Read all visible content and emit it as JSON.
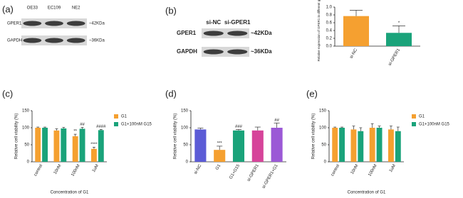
{
  "panel_labels": [
    "(a)",
    "(b)",
    "(c)",
    "(d)",
    "(e)"
  ],
  "blots": [
    {
      "lanes": [
        "OE33",
        "EC109",
        "NE2"
      ],
      "rows": [
        {
          "name": "GPER1",
          "size": "~42KDa"
        },
        {
          "name": "GAPDH",
          "size": "~36KDa"
        }
      ]
    },
    {
      "lanes": [
        "si-NC",
        "si-GPER1"
      ],
      "rows": [
        {
          "name": "GPER1",
          "size": "~42KDa"
        },
        {
          "name": "GAPDH",
          "size": "~36KDa"
        }
      ]
    }
  ],
  "chart_data": [
    {
      "type": "bar",
      "ylabel": "Relative expression of GPER1 in different groups",
      "categories": [
        "si-NC",
        "si-GPER1"
      ],
      "values": [
        0.77,
        0.34
      ],
      "errors": [
        0.15,
        0.18
      ],
      "colors": [
        "#f5a030",
        "#1aa37a"
      ],
      "annotations": [
        null,
        "*"
      ],
      "ylim": [
        0,
        1.0
      ],
      "yticks": [
        {
          "value": 0,
          "label": "0.0"
        },
        0.2,
        0.4,
        0.6,
        0.8,
        {
          "value": 1.0,
          "label": "1.0"
        }
      ]
    },
    {
      "type": "grouped-bar",
      "ylabel": "Relative cell viability (%)",
      "xlabel": "Concentration of G1",
      "categories": [
        "control",
        "10nM",
        "100nM",
        "1uM"
      ],
      "series": [
        {
          "name": "G1",
          "color": "#f5a030",
          "values": [
            100,
            92,
            75,
            38
          ],
          "errors": [
            2,
            5,
            6,
            5
          ],
          "annotations": [
            null,
            null,
            "**",
            "****"
          ]
        },
        {
          "name": "G1+100nM G15",
          "color": "#1aa37a",
          "values": [
            100,
            98,
            97,
            93
          ],
          "errors": [
            2,
            3,
            4,
            2
          ],
          "annotations": [
            null,
            null,
            "##",
            "####"
          ]
        }
      ],
      "ylim": [
        0,
        150
      ],
      "yticks": [
        0,
        50,
        100,
        150
      ]
    },
    {
      "type": "bar",
      "ylabel": "Relative cell viability (%)",
      "categories": [
        "si-NC",
        "G1",
        "G1+G15",
        "si-GPER1",
        "si-GPER1+G1"
      ],
      "values": [
        95,
        35,
        92,
        92,
        100
      ],
      "errors": [
        4,
        11,
        3,
        10,
        14
      ],
      "colors": [
        "#5b5bd6",
        "#f5a030",
        "#1aa37a",
        "#d6449a",
        "#9b59d6"
      ],
      "annotations": [
        null,
        "***",
        "###",
        null,
        "##"
      ],
      "ylim": [
        0,
        150
      ],
      "yticks": [
        0,
        50,
        100,
        150
      ]
    },
    {
      "type": "grouped-bar",
      "ylabel": "Relative cell viability (%)",
      "xlabel": "Concentration of G1",
      "categories": [
        "control",
        "10nM",
        "100nM",
        "1uM"
      ],
      "series": [
        {
          "name": "G1",
          "color": "#f5a030",
          "values": [
            100,
            95,
            100,
            95
          ],
          "errors": [
            2,
            10,
            12,
            10
          ]
        },
        {
          "name": "G1+100nM G15",
          "color": "#1aa37a",
          "values": [
            100,
            90,
            100,
            90
          ],
          "errors": [
            2,
            10,
            5,
            12
          ]
        }
      ],
      "ylim": [
        0,
        150
      ],
      "yticks": [
        0,
        50,
        100,
        150
      ]
    }
  ]
}
